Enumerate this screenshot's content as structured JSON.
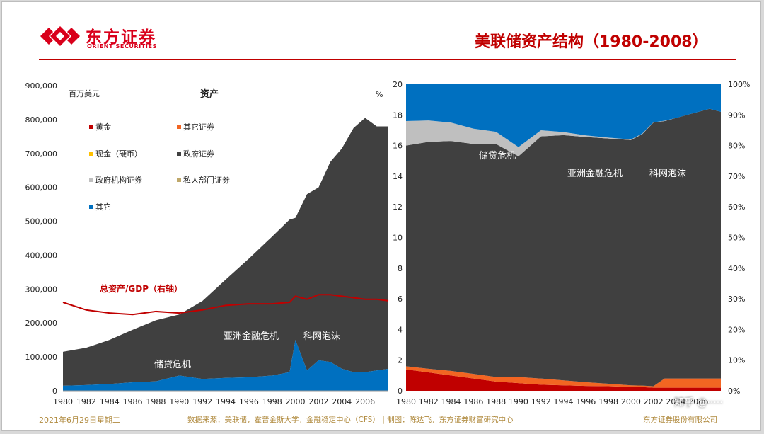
{
  "header": {
    "logo_cn": "东方证券",
    "logo_en": "ORIENT SECURITIES",
    "title": "美联储资产结构（1980-2008）"
  },
  "footer": {
    "date": "2021年6月29日星期二",
    "source": "数据来源：美联储，霍普金斯大学，金融稳定中心（CFS）  |  制图：陈达飞，东方证券财富研究中心",
    "company": "东方证券股份有限公司",
    "watermark": "知乎 @·····"
  },
  "colors": {
    "gold": "#c00000",
    "other_securities": "#f26522",
    "cash": "#ffc000",
    "government": "#404040",
    "agency": "#bfbfbf",
    "private": "#bfa86a",
    "other": "#0070c0",
    "ratio_line": "#c00000",
    "title_red": "#c00000"
  },
  "chart_data": [
    {
      "type": "area",
      "stacked": true,
      "title": "资产",
      "unit_left": "百万美元",
      "unit_right": "%",
      "x_ticks": [
        "1980",
        "1982",
        "1984",
        "1986",
        "1988",
        "1990",
        "1992",
        "1994",
        "1996",
        "1998",
        "2000",
        "2002",
        "2004",
        "2006"
      ],
      "y_ticks": [
        "0",
        "100,000",
        "200,000",
        "300,000",
        "400,000",
        "500,000",
        "600,000",
        "700,000",
        "800,000",
        "900,000"
      ],
      "ylim": [
        0,
        900000
      ],
      "y2lim": [
        0,
        20
      ],
      "y2_tick_labels": [
        "0",
        "2",
        "4",
        "6",
        "8",
        "10",
        "12",
        "14",
        "16",
        "18",
        "20"
      ],
      "legend": [
        "黄金",
        "其它证券",
        "现金（硬币）",
        "政府证券",
        "政府机构证券",
        "私人部门证券",
        "其它"
      ],
      "x": [
        1980,
        1982,
        1984,
        1986,
        1988,
        1990,
        1992,
        1994,
        1996,
        1998,
        1999.5,
        2000,
        2001,
        2002,
        2003,
        2004,
        2005,
        2006,
        2007,
        2008
      ],
      "series": [
        {
          "name": "其它",
          "values": [
            15000,
            17000,
            20000,
            25000,
            28000,
            45000,
            35000,
            38000,
            40000,
            45000,
            55000,
            150000,
            60000,
            90000,
            85000,
            65000,
            55000,
            55000,
            60000,
            65000
          ]
        },
        {
          "name": "政府证券",
          "values": [
            100000,
            110000,
            130000,
            155000,
            180000,
            180000,
            230000,
            290000,
            350000,
            410000,
            450000,
            360000,
            520000,
            510000,
            590000,
            650000,
            720000,
            750000,
            720000,
            715000
          ]
        }
      ],
      "ratio_series": {
        "name": "总资产/GDP（右轴）",
        "values": [
          5.8,
          5.3,
          5.1,
          5.0,
          5.2,
          5.1,
          5.3,
          5.6,
          5.7,
          5.7,
          5.8,
          6.2,
          6.0,
          6.3,
          6.3,
          6.2,
          6.1,
          6.0,
          6.0,
          5.9
        ]
      },
      "annotations": [
        "总资产/GDP（右轴）",
        "亚洲金融危机",
        "科网泡沫",
        "储贷危机"
      ]
    },
    {
      "type": "area",
      "stacked": true,
      "percent": true,
      "x_ticks": [
        "1980",
        "1982",
        "1984",
        "1986",
        "1988",
        "1990",
        "1992",
        "1994",
        "1996",
        "1998",
        "2000",
        "2002",
        "2004",
        "2006"
      ],
      "y_ticks": [
        "0%",
        "10%",
        "20%",
        "30%",
        "40%",
        "50%",
        "60%",
        "70%",
        "80%",
        "90%",
        "100%"
      ],
      "y_ticks_left": [
        "0",
        "2",
        "4",
        "6",
        "8",
        "10",
        "12",
        "14",
        "16",
        "18",
        "20"
      ],
      "x": [
        1980,
        1982,
        1984,
        1986,
        1988,
        1990,
        1992,
        1994,
        1996,
        1998,
        2000,
        2001,
        2002,
        2003,
        2004,
        2005,
        2006,
        2007,
        2008
      ],
      "series": [
        {
          "name": "黄金",
          "values": [
            7,
            6,
            5,
            4,
            3,
            2.5,
            2,
            1.8,
            1.6,
            1.5,
            1.3,
            1.2,
            1,
            1,
            1,
            1,
            1,
            1,
            1
          ]
        },
        {
          "name": "其它证券",
          "values": [
            1,
            1.2,
            1.5,
            1.5,
            1.5,
            2,
            2,
            1.6,
            1.2,
            0.8,
            0.5,
            0.5,
            0.5,
            3,
            3,
            3,
            3,
            3,
            3
          ]
        },
        {
          "name": "政府证券",
          "values": [
            72,
            74,
            75,
            75,
            76,
            72,
            79,
            80,
            80,
            80,
            80,
            82,
            86,
            84,
            85,
            86,
            87,
            88,
            87
          ]
        },
        {
          "name": "政府机构证券",
          "values": [
            8,
            7,
            6,
            5,
            4,
            3,
            2,
            1,
            0.5,
            0.3,
            0.2,
            0.2,
            0.1,
            0.1,
            0,
            0,
            0,
            0,
            0
          ]
        },
        {
          "name": "其它",
          "values": [
            12,
            11.8,
            12.5,
            14.5,
            15.5,
            20.5,
            15,
            15.6,
            16.7,
            17.4,
            18,
            16.1,
            12.4,
            11.9,
            11,
            10,
            9,
            8,
            9
          ]
        }
      ],
      "annotations": [
        "储贷危机",
        "亚洲金融危机",
        "科网泡沫"
      ]
    }
  ]
}
